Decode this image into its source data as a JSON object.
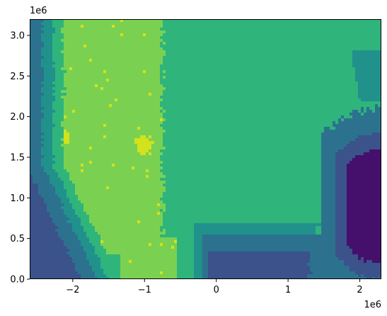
{
  "chart_data": {
    "type": "heatmap",
    "title": "",
    "xlabel": "",
    "ylabel": "",
    "xlim": [
      -2600000,
      2300000
    ],
    "ylim": [
      0,
      3200000
    ],
    "x_ticks": [
      {
        "value": -2000000,
        "label": "−2"
      },
      {
        "value": -1000000,
        "label": "−1"
      },
      {
        "value": 0,
        "label": "0"
      },
      {
        "value": 1000000,
        "label": "1"
      },
      {
        "value": 2000000,
        "label": "2"
      }
    ],
    "y_ticks": [
      {
        "value": 0,
        "label": "0.0"
      },
      {
        "value": 500000,
        "label": "0.5"
      },
      {
        "value": 1000000,
        "label": "1.0"
      },
      {
        "value": 1500000,
        "label": "1.5"
      },
      {
        "value": 2000000,
        "label": "2.0"
      },
      {
        "value": 2500000,
        "label": "2.5"
      },
      {
        "value": 3000000,
        "label": "3.0"
      }
    ],
    "x_offset_text": "1e6",
    "y_offset_text": "1e6",
    "grid": false,
    "legend": "none",
    "colormap": "viridis",
    "level_colors": [
      "#44106b",
      "#3b528b",
      "#2c728e",
      "#21918c",
      "#2fb47c",
      "#7ad151",
      "#d2e21b"
    ]
  }
}
